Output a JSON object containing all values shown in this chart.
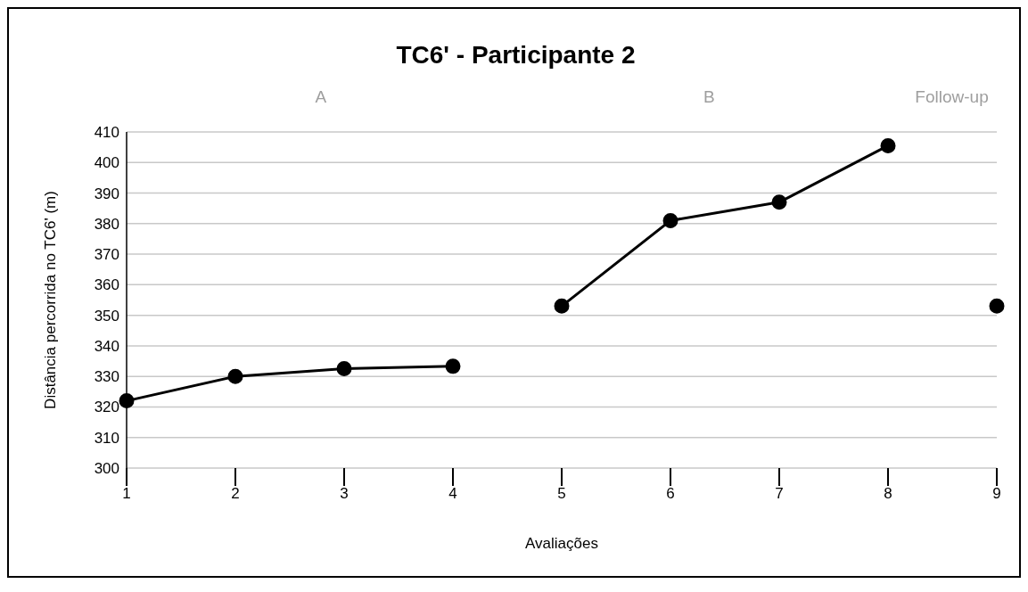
{
  "chart_data": {
    "type": "line",
    "title": "TC6' - Participante 2",
    "xlabel": "Avaliações",
    "ylabel": "Distância percorrida no TC6' (m)",
    "categories": [
      "1",
      "2",
      "3",
      "4",
      "5",
      "6",
      "7",
      "8",
      "9"
    ],
    "series": [
      {
        "color": "#000000",
        "values": [
          322,
          330,
          332.5,
          333.3,
          null,
          null,
          null,
          null,
          null
        ]
      },
      {
        "color": "#000000",
        "values": [
          null,
          null,
          null,
          null,
          353,
          381,
          387,
          405.5,
          null
        ]
      },
      {
        "color": "#000000",
        "values": [
          null,
          null,
          null,
          null,
          null,
          null,
          null,
          null,
          353
        ]
      }
    ],
    "annotations": [
      "A",
      "B",
      "Follow-up"
    ],
    "ylim": [
      300,
      410
    ],
    "yticks": [
      300,
      310,
      320,
      330,
      340,
      350,
      360,
      370,
      380,
      390,
      400,
      410
    ],
    "grid": "y",
    "legend": false,
    "marker": "circle",
    "line_style": "solid"
  }
}
